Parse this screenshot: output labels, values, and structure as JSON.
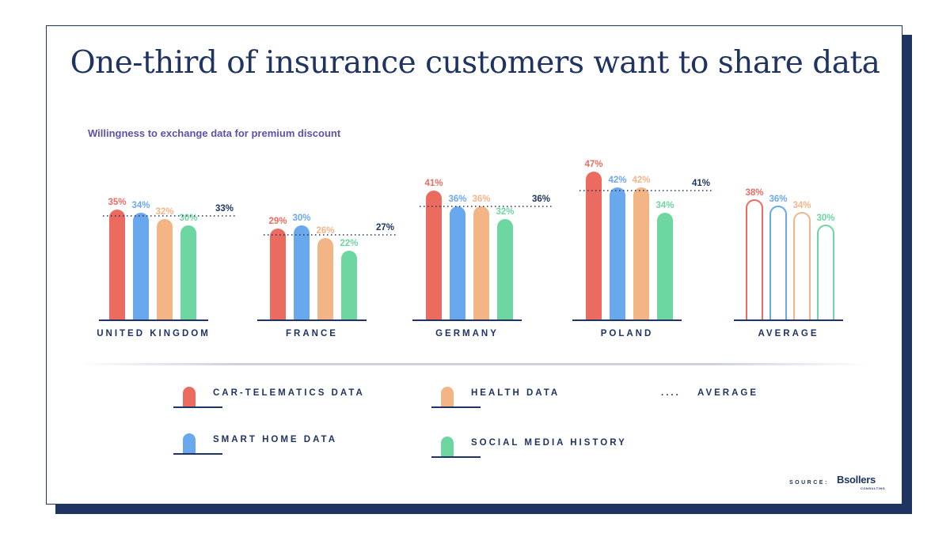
{
  "title": "One-third of insurance customers want to share data",
  "subtitle": "Willingness to exchange data for premium discount",
  "colors": {
    "navy": "#1f3461",
    "car": "#ec6b61",
    "home": "#6aa8ee",
    "health": "#f4b586",
    "social": "#6ed6a0"
  },
  "chart_data": {
    "type": "bar",
    "categories": [
      "UNITED KINGDOM",
      "FRANCE",
      "GERMANY",
      "POLAND",
      "AVERAGE"
    ],
    "series": [
      {
        "name": "CAR-TELEMATICS DATA",
        "values": [
          35,
          29,
          41,
          47,
          38
        ],
        "labels": [
          "35%",
          "29%",
          "41%",
          "47%",
          "38%"
        ]
      },
      {
        "name": "SMART HOME DATA",
        "values": [
          34,
          30,
          36,
          42,
          36
        ],
        "labels": [
          "34%",
          "30%",
          "36%",
          "42%",
          "36%"
        ]
      },
      {
        "name": "HEALTH DATA",
        "values": [
          32,
          26,
          36,
          42,
          34
        ],
        "labels": [
          "32%",
          "26%",
          "36%",
          "42%",
          "34%"
        ]
      },
      {
        "name": "SOCIAL MEDIA HISTORY",
        "values": [
          30,
          22,
          32,
          34,
          30
        ],
        "labels": [
          "30%",
          "22%",
          "32%",
          "34%",
          "30%"
        ]
      }
    ],
    "average": {
      "name": "AVERAGE",
      "values": [
        33,
        27,
        36,
        41
      ],
      "labels": [
        "33%",
        "27%",
        "36%",
        "41%"
      ]
    },
    "average_group_style": "outline"
  },
  "legend": {
    "car": "CAR-TELEMATICS DATA",
    "home": "SMART HOME DATA",
    "health": "HEALTH DATA",
    "social": "SOCIAL MEDIA HISTORY",
    "average_dots": "....",
    "average": "AVERAGE"
  },
  "source": {
    "label": "SOURCE:",
    "logo": "sollers",
    "logo_sub": "CONSULTING"
  }
}
